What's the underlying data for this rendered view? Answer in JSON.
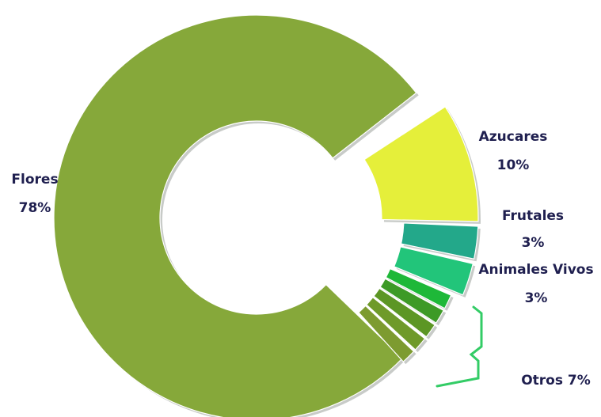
{
  "chart_data": {
    "type": "pie",
    "style": "exploded-donut",
    "slices": [
      {
        "category": "Flores",
        "value": 78,
        "value_label": "78%",
        "color": "#86a83a"
      },
      {
        "category": "Azucares",
        "value": 10,
        "value_label": "10%",
        "color": "#e5ef3a"
      },
      {
        "category": "Frutales",
        "value": 3,
        "value_label": "3%",
        "color": "#23a88a"
      },
      {
        "category": "Animales Vivos",
        "value": 3,
        "value_label": "3%",
        "color": "#22c57a"
      }
    ],
    "otros": {
      "label": "Otros 7%",
      "value": 7,
      "colors": [
        "#1eb838",
        "#3d9a26",
        "#5c9624",
        "#6f9a2a",
        "#7d9b30"
      ]
    },
    "bracket_color": "#33cc66"
  }
}
